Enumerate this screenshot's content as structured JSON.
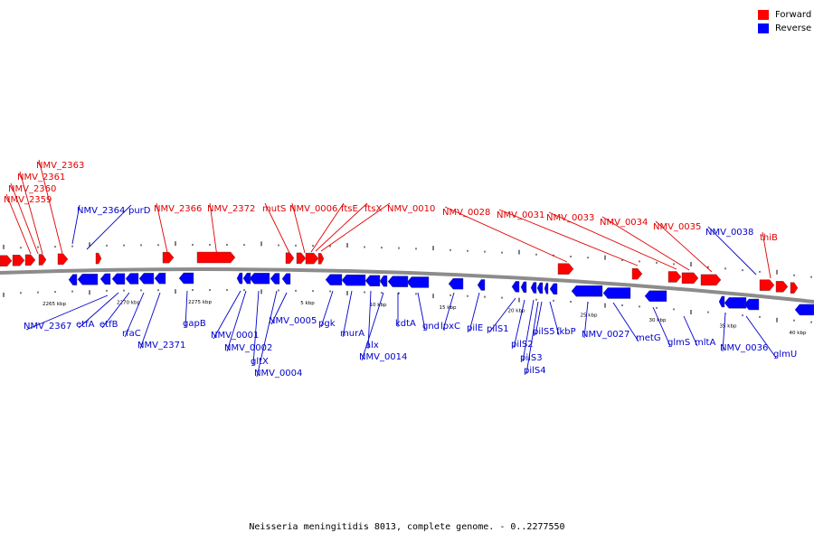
{
  "legend": {
    "forward_label": "Forward",
    "reverse_label": "Reverse",
    "forward_color": "#ff0000",
    "reverse_color": "#0000ff"
  },
  "caption": "Neisseria meningitidis 8013, complete genome. - 0..2277550",
  "scale_labels": [
    "2265 kbp",
    "2270 kbp",
    "2275 kbp",
    "5 kbp",
    "10 kbp",
    "15 kbp",
    "20 kbp",
    "25 kbp",
    "30 kbp",
    "35 kbp",
    "40 kbp"
  ],
  "forward_genes": [
    "NMV_2363",
    "NMV_2361",
    "NMV_2360",
    "NMV_2359",
    "NMV_2366",
    "NMV_2372",
    "mutS",
    "NMV_0006",
    "ftsE",
    "ftsX",
    "NMV_0010",
    "NMV_0028",
    "NMV_0031",
    "NMV_0033",
    "NMV_0034",
    "NMV_0035",
    "thiB"
  ],
  "reverse_genes": [
    "NMV_2364",
    "purD",
    "NMV_0038",
    "NMV_2367",
    "etfA",
    "etfB",
    "rfaC",
    "NMV_2371",
    "gapB",
    "NMV_0001",
    "NMV_0002",
    "gltX",
    "NMV_0004",
    "NMV_0005",
    "pgk",
    "murA",
    "alx",
    "NMV_0014",
    "kdtA",
    "gnd",
    "lpxC",
    "pilE",
    "pilS1",
    "pilS2",
    "pilS3",
    "pilS4",
    "pilS5",
    "fkbP",
    "NMV_0027",
    "metG",
    "glmS",
    "mltA",
    "NMV_0036",
    "glmU"
  ]
}
